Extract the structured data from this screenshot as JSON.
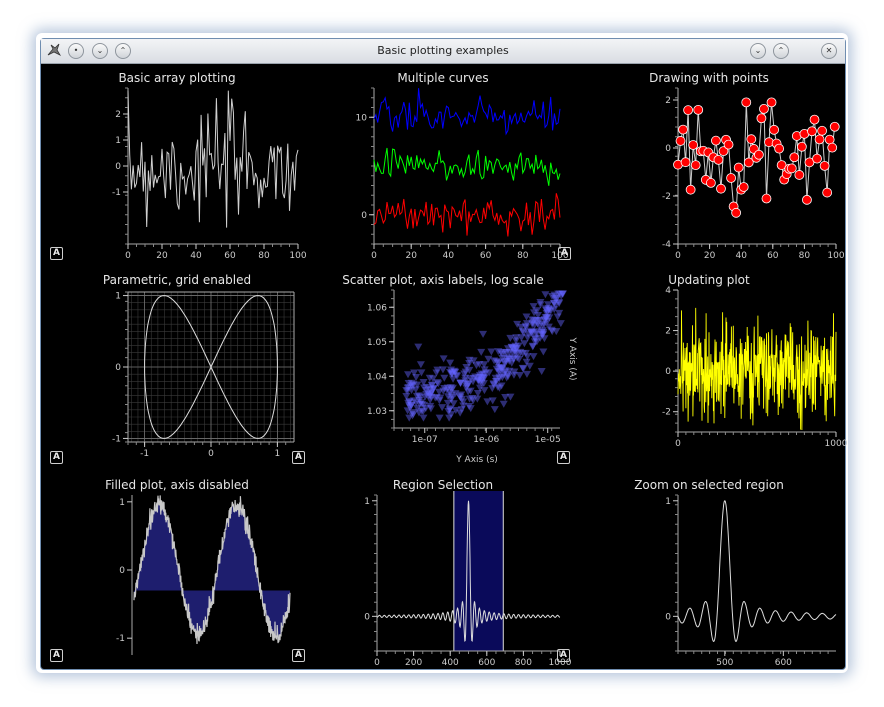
{
  "window": {
    "title": "Basic plotting examples"
  },
  "titlebar_buttons": {
    "left": [
      "app-icon",
      "minimize-left",
      "shade",
      "keep-above"
    ],
    "right": [
      "minimize",
      "maximize",
      "close"
    ]
  },
  "autorange_label": "A",
  "plots": [
    {
      "title": "Basic array plotting",
      "chart_data": {
        "type": "line",
        "series": [
          {
            "color": "#d0d0d0"
          }
        ],
        "xlim": [
          0,
          100
        ],
        "ylim": [
          -3,
          3
        ],
        "xticks": [
          "0",
          "20",
          "40",
          "60",
          "80",
          "100"
        ],
        "yticks": [
          "2",
          "1",
          "0",
          "-1"
        ]
      }
    },
    {
      "title": "Multiple curves",
      "chart_data": {
        "type": "line",
        "series": [
          {
            "color": "#0000ff",
            "offset": 10
          },
          {
            "color": "#00ff00",
            "offset": 5
          },
          {
            "color": "#ff0000",
            "offset": 0
          }
        ],
        "xlim": [
          0,
          100
        ],
        "xticks": [
          "0",
          "20",
          "40",
          "60",
          "80",
          "100"
        ],
        "yticks": [
          "10",
          "0"
        ]
      }
    },
    {
      "title": "Drawing with points",
      "chart_data": {
        "type": "scatter",
        "marker_color": "#ff0000",
        "marker_edge": "#ffffff",
        "xlim": [
          0,
          100
        ],
        "ylim": [
          -4,
          2.5
        ],
        "xticks": [
          "0",
          "20",
          "40",
          "60",
          "80",
          "100"
        ],
        "yticks": [
          "2",
          "0",
          "-2",
          "-4"
        ]
      }
    },
    {
      "title": "Parametric, grid enabled",
      "chart_data": {
        "type": "line",
        "grid": true,
        "xlim": [
          -1.25,
          1.25
        ],
        "ylim": [
          -1.05,
          1.05
        ],
        "xticks": [
          "-1",
          "0",
          "1"
        ],
        "yticks": [
          "1",
          "0",
          "-1"
        ]
      }
    },
    {
      "title": "Scatter plot, axis labels, log scale",
      "chart_data": {
        "type": "scatter",
        "marker_color": "#6464ff",
        "xscale": "log",
        "xlim": [
          "1e-7.5",
          "1e-4.8"
        ],
        "ylim": [
          1.025,
          1.065
        ],
        "xticks": [
          "1e-07",
          "1e-06",
          "1e-05"
        ],
        "yticks": [
          "1.06",
          "1.05",
          "1.04",
          "1.03"
        ],
        "xlabel": "Y Axis (s)",
        "ylabel": "Y Axis (A)"
      }
    },
    {
      "title": "Updating plot",
      "chart_data": {
        "type": "line",
        "series": [
          {
            "color": "#ffff00"
          }
        ],
        "xlim": [
          0,
          1000
        ],
        "ylim": [
          -3,
          4
        ],
        "xticks": [
          "0",
          "1000"
        ],
        "yticks": [
          "4",
          "2",
          "0",
          "-2"
        ]
      }
    },
    {
      "title": "Filled plot, axis disabled",
      "chart_data": {
        "type": "area",
        "fill_color": "#1e1e6e",
        "line_color": "#c8c8c8",
        "fill_level": -0.3,
        "ylim": [
          -1.1,
          1.1
        ],
        "yticks": [
          "1",
          "0",
          "-1"
        ]
      }
    },
    {
      "title": "Region Selection",
      "chart_data": {
        "type": "line",
        "xlim": [
          0,
          1000
        ],
        "ylim": [
          -0.3,
          1.05
        ],
        "region": [
          420,
          690
        ],
        "xticks": [
          "0",
          "200",
          "400",
          "600",
          "800",
          "1000"
        ],
        "yticks": [
          "1",
          "0"
        ]
      }
    },
    {
      "title": "Zoom on selected region",
      "chart_data": {
        "type": "line",
        "xlim": [
          420,
          690
        ],
        "ylim": [
          -0.3,
          1.05
        ],
        "xticks": [
          "500",
          "600"
        ],
        "yticks": [
          "1",
          "0"
        ]
      }
    }
  ]
}
